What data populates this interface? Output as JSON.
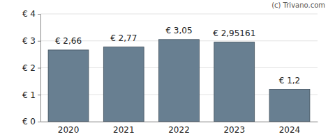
{
  "chart_data": {
    "type": "bar",
    "categories": [
      "2020",
      "2021",
      "2022",
      "2023",
      "2024"
    ],
    "values": [
      2.66,
      2.77,
      3.05,
      2.95161,
      1.2
    ],
    "value_labels": [
      "€ 2,66",
      "€ 2,77",
      "€ 3,05",
      "€ 2,95161",
      "€ 1,2"
    ],
    "data_labels": true,
    "color": "#687f91",
    "ylim": [
      0,
      4
    ],
    "yticks": [
      {
        "value": 0,
        "label": "€ 0"
      },
      {
        "value": 1,
        "label": "€ 1"
      },
      {
        "value": 2,
        "label": "€ 2"
      },
      {
        "value": 3,
        "label": "€ 3"
      },
      {
        "value": 4,
        "label": "€ 4"
      }
    ],
    "grid": true,
    "annotations": [
      "(c) Trivano.com"
    ]
  }
}
